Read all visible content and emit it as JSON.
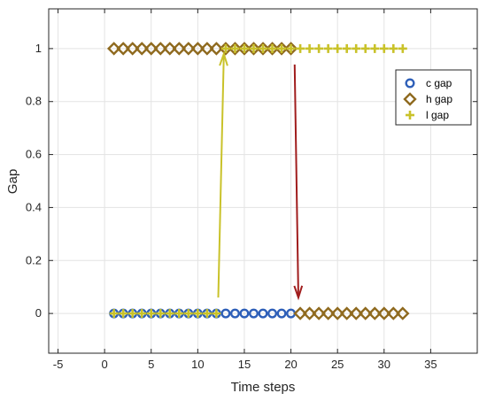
{
  "chart_data": {
    "type": "scatter",
    "title": "",
    "xlabel": "Time steps",
    "ylabel": "Gap",
    "xlim": [
      -6,
      40
    ],
    "ylim": [
      -0.15,
      1.15
    ],
    "xticks": [
      -5,
      0,
      5,
      10,
      15,
      20,
      25,
      30,
      35
    ],
    "yticks": [
      0,
      0.2,
      0.4,
      0.6,
      0.8,
      1
    ],
    "ytick_labels": [
      "0",
      "0.2",
      "0.4",
      "0.6",
      "0.8",
      "1"
    ],
    "grid": true,
    "legend_position": "right",
    "series": [
      {
        "name": "c gap",
        "marker": "circle",
        "color": "#2e5fb8",
        "x": [
          1,
          2,
          3,
          4,
          5,
          6,
          7,
          8,
          9,
          10,
          11,
          12,
          13,
          14,
          15,
          16,
          17,
          18,
          19,
          20
        ],
        "y": [
          0,
          0,
          0,
          0,
          0,
          0,
          0,
          0,
          0,
          0,
          0,
          0,
          0,
          0,
          0,
          0,
          0,
          0,
          0,
          0
        ]
      },
      {
        "name": "h gap",
        "marker": "diamond",
        "color": "#8f6a1f",
        "x": [
          1,
          2,
          3,
          4,
          5,
          6,
          7,
          8,
          9,
          10,
          11,
          12,
          13,
          14,
          15,
          16,
          17,
          18,
          19,
          20,
          21,
          22,
          23,
          24,
          25,
          26,
          27,
          28,
          29,
          30,
          31,
          32
        ],
        "y": [
          1,
          1,
          1,
          1,
          1,
          1,
          1,
          1,
          1,
          1,
          1,
          1,
          1,
          1,
          1,
          1,
          1,
          1,
          1,
          1,
          0,
          0,
          0,
          0,
          0,
          0,
          0,
          0,
          0,
          0,
          0,
          0
        ]
      },
      {
        "name": "l gap",
        "marker": "plus",
        "color": "#c9c22a",
        "x": [
          1,
          2,
          3,
          4,
          5,
          6,
          7,
          8,
          9,
          10,
          11,
          12,
          13,
          14,
          15,
          16,
          17,
          18,
          19,
          20,
          21,
          22,
          23,
          24,
          25,
          26,
          27,
          28,
          29,
          30,
          31,
          32
        ],
        "y": [
          0,
          0,
          0,
          0,
          0,
          0,
          0,
          0,
          0,
          0,
          0,
          0,
          1,
          1,
          1,
          1,
          1,
          1,
          1,
          1,
          1,
          1,
          1,
          1,
          1,
          1,
          1,
          1,
          1,
          1,
          1,
          1
        ]
      }
    ],
    "arrows": [
      {
        "from": [
          12.2,
          0.06
        ],
        "to": [
          12.8,
          0.98
        ],
        "color": "#c9c22a"
      },
      {
        "from": [
          20.4,
          0.94
        ],
        "to": [
          20.8,
          0.06
        ],
        "color": "#a01d1d"
      }
    ]
  }
}
